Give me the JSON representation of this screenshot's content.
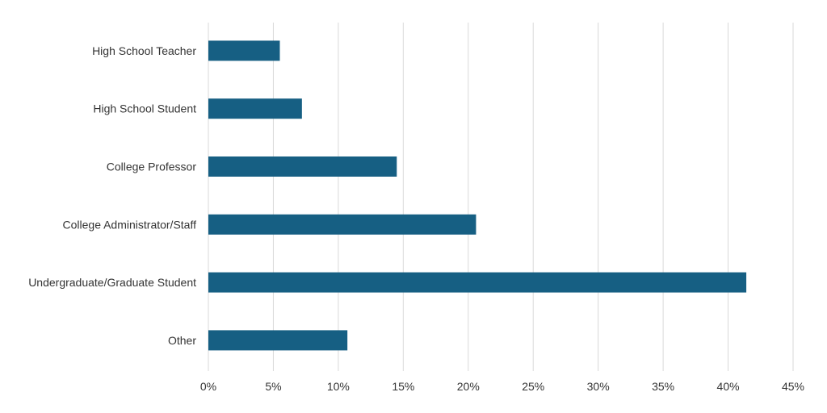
{
  "chart_data": {
    "type": "bar",
    "orientation": "horizontal",
    "categories": [
      "High School Teacher",
      "High School Student",
      "College Professor",
      "College Administrator/Staff",
      "Undergraduate/Graduate Student",
      "Other"
    ],
    "values": [
      5.5,
      7.2,
      14.5,
      20.6,
      41.4,
      10.7
    ],
    "x_ticks": [
      "0%",
      "5%",
      "10%",
      "15%",
      "20%",
      "25%",
      "30%",
      "35%",
      "40%",
      "45%"
    ],
    "xlim": [
      0,
      45
    ],
    "value_unit": "%",
    "grid": true,
    "legend": "none",
    "title": "",
    "xlabel": "",
    "ylabel": "",
    "bar_color": "#165F83",
    "grid_color": "#D9D9D9"
  }
}
